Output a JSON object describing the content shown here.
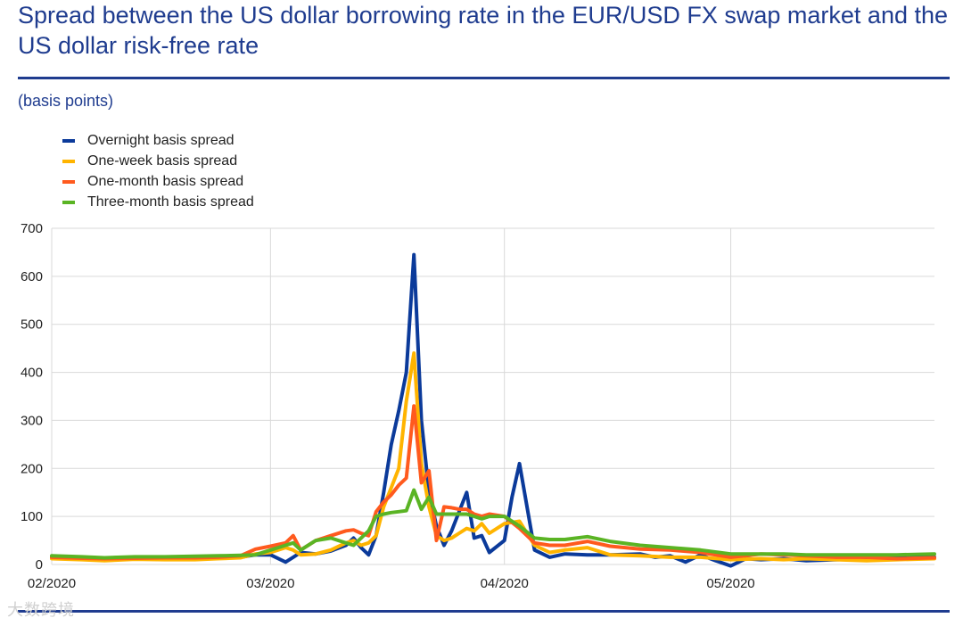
{
  "title": "Spread between the US dollar borrowing rate in the EUR/USD FX swap market and the US dollar risk-free rate",
  "subtitle": "(basis points)",
  "watermark": "大数跨境",
  "colors": {
    "title": "#1f3c8f",
    "grid": "#d9d9d9"
  },
  "chart_data": {
    "type": "line",
    "title": "Spread between the US dollar borrowing rate in the EUR/USD FX swap market and the US dollar risk-free rate",
    "ylabel": "(basis points)",
    "ylim": [
      0,
      700
    ],
    "yticks": [
      0,
      100,
      200,
      300,
      400,
      500,
      600,
      700
    ],
    "xticks": [
      {
        "label": "02/2020",
        "day": 0
      },
      {
        "label": "03/2020",
        "day": 29
      },
      {
        "label": "04/2020",
        "day": 60
      },
      {
        "label": "05/2020",
        "day": 90
      }
    ],
    "xlim_days": [
      0,
      117
    ],
    "grid": true,
    "legend_position": "top-left",
    "series": [
      {
        "name": "Overnight basis spread",
        "color": "#0b3a9a",
        "x": [
          0,
          4,
          7,
          11,
          15,
          19,
          22,
          25,
          27,
          29,
          31,
          32,
          33,
          35,
          37,
          39,
          40,
          41,
          42,
          43,
          44,
          45,
          46,
          47,
          48,
          49,
          50,
          51,
          52,
          53,
          54,
          55,
          56,
          57,
          58,
          60,
          61,
          62,
          64,
          66,
          68,
          71,
          74,
          78,
          80,
          82,
          84,
          86,
          88,
          90,
          92,
          94,
          97,
          100,
          104,
          108,
          112,
          117
        ],
        "y": [
          15,
          12,
          10,
          13,
          12,
          11,
          13,
          15,
          20,
          20,
          5,
          15,
          25,
          22,
          28,
          40,
          55,
          35,
          20,
          60,
          150,
          250,
          320,
          400,
          645,
          300,
          150,
          80,
          40,
          70,
          110,
          150,
          55,
          60,
          25,
          50,
          140,
          210,
          30,
          15,
          22,
          20,
          20,
          22,
          15,
          18,
          5,
          20,
          8,
          -3,
          12,
          10,
          12,
          8,
          10,
          12,
          15,
          15
        ]
      },
      {
        "name": "One-week basis spread",
        "color": "#ffb400",
        "x": [
          0,
          4,
          7,
          11,
          15,
          19,
          22,
          25,
          27,
          29,
          31,
          32,
          33,
          35,
          37,
          39,
          40,
          41,
          42,
          43,
          44,
          45,
          46,
          47,
          48,
          49,
          50,
          51,
          52,
          53,
          54,
          55,
          56,
          57,
          58,
          60,
          62,
          64,
          66,
          68,
          71,
          74,
          78,
          82,
          86,
          90,
          94,
          97,
          100,
          104,
          108,
          112,
          117
        ],
        "y": [
          12,
          10,
          8,
          11,
          10,
          10,
          12,
          14,
          22,
          25,
          35,
          30,
          20,
          22,
          30,
          45,
          50,
          40,
          45,
          60,
          120,
          160,
          200,
          340,
          440,
          210,
          120,
          60,
          50,
          55,
          65,
          75,
          70,
          85,
          65,
          85,
          90,
          40,
          25,
          30,
          35,
          20,
          18,
          15,
          15,
          10,
          12,
          10,
          12,
          10,
          8,
          10,
          12
        ]
      },
      {
        "name": "One-month basis spread",
        "color": "#ff5a1e",
        "x": [
          0,
          4,
          7,
          11,
          15,
          19,
          22,
          25,
          27,
          29,
          31,
          32,
          33,
          35,
          37,
          39,
          40,
          41,
          42,
          43,
          44,
          45,
          46,
          47,
          48,
          49,
          50,
          51,
          52,
          53,
          54,
          55,
          56,
          57,
          58,
          60,
          62,
          64,
          66,
          68,
          71,
          74,
          78,
          82,
          86,
          90,
          94,
          97,
          100,
          104,
          108,
          112,
          117
        ],
        "y": [
          15,
          13,
          12,
          13,
          14,
          14,
          15,
          18,
          32,
          38,
          45,
          60,
          30,
          50,
          60,
          70,
          72,
          65,
          60,
          110,
          130,
          145,
          165,
          180,
          330,
          170,
          195,
          50,
          120,
          118,
          115,
          115,
          105,
          100,
          105,
          100,
          75,
          45,
          40,
          40,
          48,
          38,
          32,
          30,
          25,
          15,
          22,
          20,
          18,
          15,
          15,
          12,
          14
        ]
      },
      {
        "name": "Three-month basis spread",
        "color": "#5ab424",
        "x": [
          0,
          4,
          7,
          11,
          15,
          19,
          22,
          25,
          27,
          29,
          31,
          32,
          33,
          35,
          37,
          39,
          40,
          41,
          42,
          43,
          44,
          45,
          46,
          47,
          48,
          49,
          50,
          51,
          52,
          53,
          54,
          55,
          56,
          57,
          58,
          60,
          62,
          64,
          66,
          68,
          71,
          74,
          78,
          82,
          86,
          90,
          94,
          97,
          100,
          104,
          108,
          112,
          117
        ],
        "y": [
          18,
          16,
          14,
          16,
          16,
          17,
          18,
          19,
          20,
          30,
          40,
          45,
          30,
          50,
          55,
          45,
          40,
          55,
          70,
          100,
          105,
          108,
          110,
          112,
          155,
          115,
          140,
          105,
          105,
          105,
          105,
          105,
          100,
          95,
          100,
          100,
          80,
          55,
          52,
          52,
          58,
          48,
          40,
          35,
          30,
          22,
          22,
          22,
          20,
          20,
          20,
          20,
          22
        ]
      }
    ]
  }
}
